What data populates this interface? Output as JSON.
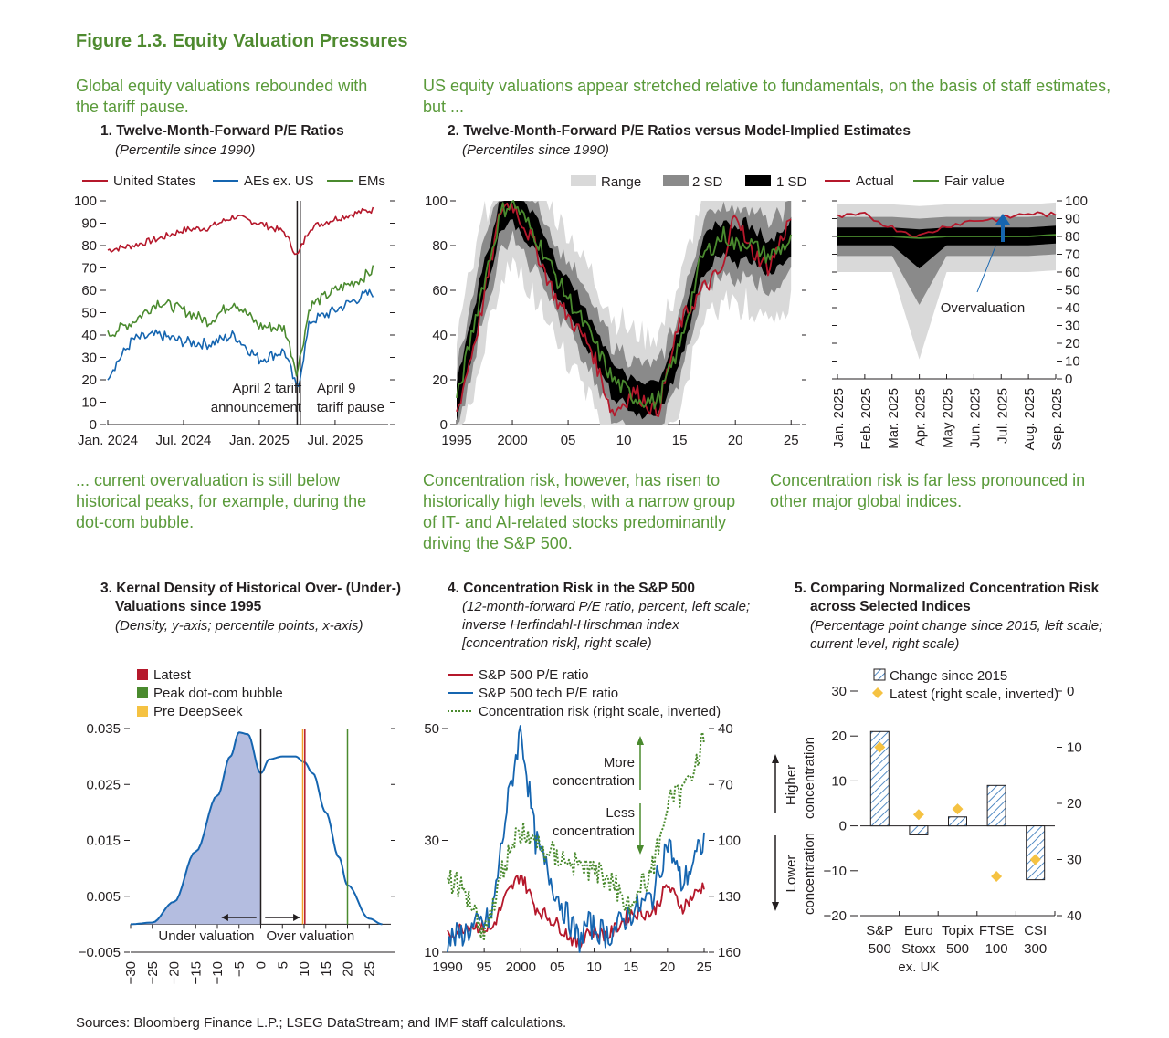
{
  "figure": {
    "title": "Figure 1.3. Equity Valuation Pressures",
    "sources": "Sources: Bloomberg Finance L.P.; LSEG DataStream; and IMF staff calculations."
  },
  "captions": {
    "c1": "Global equity valuations rebounded with the tariff pause.",
    "c2": "US equity valuations appear stretched relative to fundamentals, on the basis of staff estimates, but ...",
    "c3": "... current overvaluation is still below historical peaks, for example, during the dot-com bubble.",
    "c4": "Concentration risk, however, has risen to historically high levels, with a narrow group of IT- and AI-related stocks predominantly driving the S&P 500.",
    "c5": "Concentration risk is far less pronounced in other major global indices."
  },
  "panels": {
    "p1": {
      "title": "1. Twelve-Month-Forward P/E Ratios",
      "subtitle": "(Percentile since 1990)"
    },
    "p2": {
      "title": "2. Twelve-Month-Forward P/E Ratios versus Model-Implied Estimates",
      "subtitle": "(Percentiles since 1990)"
    },
    "p3": {
      "title1": "3. Kernal Density of Historical Over- (Under-)",
      "title2": "Valuations since 1995",
      "subtitle": "(Density, y-axis; percentile points, x-axis)"
    },
    "p4": {
      "title": "4. Concentration Risk in the S&P 500",
      "sub1": "(12-month-forward P/E ratio, percent, left scale;",
      "sub2": "inverse Herfindahl-Hirschman index",
      "sub3": "[concentration risk], right scale)"
    },
    "p5": {
      "title1": "5. Comparing Normalized Concentration Risk",
      "title2": "across Selected Indices",
      "sub1": "(Percentage point change since 2015, left scale;",
      "sub2": "current level, right scale)"
    }
  },
  "colors": {
    "red": "#b5182b",
    "blue": "#1565b0",
    "green": "#4a8a2e",
    "orange": "#f0a12a",
    "yellow": "#f5c242",
    "density_fill": "#b4bde0",
    "hatch_blue": "#2a6fb5"
  },
  "chart_data": [
    {
      "type": "line",
      "id": "p1",
      "x_ticks": [
        "Jan. 2024",
        "Jul. 2024",
        "Jan. 2025",
        "Jul. 2025"
      ],
      "ylim": [
        0,
        100
      ],
      "y_ticks": [
        0,
        10,
        20,
        30,
        40,
        50,
        60,
        70,
        80,
        90,
        100
      ],
      "legend": [
        "United States",
        "AEs ex. US",
        "EMs"
      ],
      "annotations": [
        "April 2 tariff",
        "announcement",
        "April 9",
        "tariff pause"
      ],
      "series": [
        {
          "name": "United States",
          "color": "#b5182b",
          "x": [
            "2024-01",
            "2024-03",
            "2024-05",
            "2024-07",
            "2024-09",
            "2024-11",
            "2025-01",
            "2025-03",
            "2025-04",
            "2025-05",
            "2025-07",
            "2025-09",
            "2025-10"
          ],
          "values": [
            78,
            80,
            83,
            87,
            88,
            93,
            90,
            86,
            75,
            88,
            92,
            95,
            96
          ]
        },
        {
          "name": "AEs ex. US",
          "color": "#1565b0",
          "x": [
            "2024-01",
            "2024-03",
            "2024-05",
            "2024-07",
            "2024-09",
            "2024-11",
            "2025-01",
            "2025-03",
            "2025-04",
            "2025-05",
            "2025-07",
            "2025-09",
            "2025-10"
          ],
          "values": [
            22,
            38,
            40,
            37,
            36,
            40,
            29,
            33,
            15,
            46,
            51,
            57,
            59
          ]
        },
        {
          "name": "EMs",
          "color": "#4a8a2e",
          "x": [
            "2024-01",
            "2024-03",
            "2024-05",
            "2024-07",
            "2024-09",
            "2024-11",
            "2025-01",
            "2025-03",
            "2025-04",
            "2025-05",
            "2025-07",
            "2025-09",
            "2025-10"
          ],
          "values": [
            40,
            46,
            55,
            51,
            46,
            55,
            44,
            43,
            23,
            53,
            60,
            65,
            69
          ]
        }
      ]
    },
    {
      "type": "line",
      "id": "p2a",
      "x_ticks": [
        "1995",
        "2000",
        "05",
        "10",
        "15",
        "20",
        "25"
      ],
      "ylim": [
        0,
        100
      ],
      "y_ticks": [
        0,
        20,
        40,
        60,
        80,
        100
      ],
      "legend": [
        "Range",
        "2 SD",
        "1 SD"
      ],
      "series": [
        {
          "name": "Actual",
          "color": "#b5182b",
          "x": [
            1995,
            1997,
            1999,
            2000,
            2002,
            2004,
            2007,
            2009,
            2011,
            2013,
            2015,
            2017,
            2019,
            2020,
            2021,
            2023,
            2025
          ],
          "values": [
            5,
            45,
            97,
            99,
            80,
            55,
            35,
            5,
            15,
            5,
            45,
            60,
            70,
            98,
            80,
            70,
            93
          ]
        },
        {
          "name": "Fair value",
          "color": "#4a8a2e",
          "x": [
            1995,
            1997,
            1999,
            2000,
            2002,
            2004,
            2007,
            2009,
            2011,
            2013,
            2015,
            2017,
            2019,
            2020,
            2021,
            2023,
            2025
          ],
          "values": [
            10,
            55,
            95,
            100,
            85,
            65,
            40,
            20,
            12,
            10,
            35,
            75,
            85,
            80,
            82,
            75,
            82
          ]
        }
      ]
    },
    {
      "type": "line",
      "id": "p2b",
      "x_ticks": [
        "Jan. 2025",
        "Feb. 2025",
        "Mar. 2025",
        "Apr. 2025",
        "May 2025",
        "Jun. 2025",
        "Jul. 2025",
        "Aug. 2025",
        "Sep. 2025"
      ],
      "ylim": [
        0,
        100
      ],
      "y_ticks": [
        0,
        10,
        20,
        30,
        40,
        50,
        60,
        70,
        80,
        90,
        100
      ],
      "legend": [
        "Actual",
        "Fair value"
      ],
      "annotations": [
        "Overvaluation"
      ],
      "series": [
        {
          "name": "Actual",
          "color": "#b5182b",
          "x": [
            "Jan",
            "Feb",
            "Mar",
            "Apr",
            "May",
            "Jun",
            "Jul",
            "Aug",
            "Sep"
          ],
          "values": [
            91,
            92,
            85,
            80,
            86,
            89,
            90,
            93,
            92
          ]
        },
        {
          "name": "Fair value",
          "color": "#4a8a2e",
          "x": [
            "Jan",
            "Feb",
            "Mar",
            "Apr",
            "May",
            "Jun",
            "Jul",
            "Aug",
            "Sep"
          ],
          "values": [
            80,
            80,
            80,
            79,
            80,
            80,
            80,
            80,
            81
          ]
        }
      ]
    },
    {
      "type": "area",
      "id": "p3",
      "xlim": [
        -30,
        30
      ],
      "x_ticks": [
        -30,
        -25,
        -20,
        -15,
        -10,
        -5,
        0,
        5,
        10,
        15,
        20,
        25
      ],
      "ylim": [
        -0.005,
        0.035
      ],
      "y_ticks": [
        "-0.005",
        "0.005",
        "0.015",
        "0.025",
        "0.035"
      ],
      "legend": [
        "Latest",
        "Peak dot-com bubble",
        "Pre DeepSeek"
      ],
      "annotations": [
        "Under valuation",
        "Over valuation"
      ],
      "x": [
        -30,
        -25,
        -20,
        -15,
        -10,
        -7,
        -5,
        -3,
        0,
        2,
        5,
        8,
        10,
        12,
        15,
        18,
        20,
        25,
        28
      ],
      "values": [
        0,
        0.0003,
        0.004,
        0.013,
        0.023,
        0.03,
        0.0343,
        0.034,
        0.027,
        0.0295,
        0.03,
        0.03,
        0.029,
        0.027,
        0.02,
        0.012,
        0.007,
        0.001,
        0
      ],
      "markers": [
        {
          "name": "Latest",
          "x": 10,
          "color": "#b5182b"
        },
        {
          "name": "Peak dot-com bubble",
          "x": 20,
          "color": "#4a8a2e"
        },
        {
          "name": "Pre DeepSeek",
          "x": 10,
          "color": "#f0a12a"
        }
      ]
    },
    {
      "type": "line",
      "id": "p4",
      "x_ticks": [
        "1990",
        "95",
        "2000",
        "05",
        "10",
        "15",
        "20",
        "25"
      ],
      "y_left_ticks": [
        10,
        30,
        50
      ],
      "y_right_ticks": [
        40,
        70,
        100,
        130,
        160
      ],
      "legend": [
        "S&P 500 P/E ratio",
        "S&P 500 tech P/E ratio",
        "Concentration risk (right scale, inverted)"
      ],
      "annotations": [
        "More",
        "concentration",
        "Less",
        "concentration"
      ],
      "series": [
        {
          "name": "S&P 500 P/E ratio",
          "color": "#b5182b",
          "x": [
            1990,
            1993,
            1996,
            1998,
            2000,
            2002,
            2005,
            2008,
            2009,
            2012,
            2015,
            2018,
            2020,
            2022,
            2025
          ],
          "values": [
            13,
            15,
            14,
            20,
            24,
            18,
            15,
            11,
            14,
            13,
            17,
            17,
            22,
            18,
            22
          ]
        },
        {
          "name": "S&P 500 tech P/E ratio",
          "color": "#1565b0",
          "x": [
            1990,
            1993,
            1996,
            1998,
            2000,
            2002,
            2005,
            2008,
            2009,
            2012,
            2015,
            2018,
            2020,
            2022,
            2025
          ],
          "values": [
            12,
            14,
            16,
            35,
            50,
            30,
            20,
            12,
            15,
            13,
            17,
            20,
            30,
            22,
            30
          ]
        },
        {
          "name": "Concentration risk (right scale, inverted)",
          "color": "#4a8a2e",
          "x": [
            1990,
            1993,
            1995,
            1998,
            2000,
            2003,
            2006,
            2009,
            2012,
            2015,
            2018,
            2020,
            2022,
            2024,
            2025
          ],
          "values": [
            120,
            130,
            150,
            110,
            95,
            105,
            110,
            115,
            120,
            135,
            115,
            80,
            75,
            55,
            45
          ]
        }
      ]
    },
    {
      "type": "bar",
      "id": "p5",
      "categories": [
        "S&P 500",
        "Euro Stoxx ex. UK",
        "Topix 500",
        "FTSE 100",
        "CSI 300"
      ],
      "category_lines": [
        [
          "S&P",
          "500"
        ],
        [
          "Euro",
          "Stoxx",
          "ex. UK"
        ],
        [
          "Topix",
          "500"
        ],
        [
          "FTSE",
          "100"
        ],
        [
          "CSI",
          "300"
        ]
      ],
      "series": [
        {
          "name": "Change since 2015",
          "values": [
            21,
            -2,
            2,
            9,
            -12
          ]
        },
        {
          "name": "Latest (right scale, inverted)",
          "values": [
            -10,
            -22,
            -21,
            -33,
            -30
          ]
        }
      ],
      "ylim": [
        -20,
        30
      ],
      "y_left_ticks": [
        -20,
        -10,
        0,
        10,
        20,
        30
      ],
      "y_right_ticks": [
        0,
        -10,
        -20,
        -30,
        -40
      ],
      "y_right_labels": [
        "0",
        "10",
        "20",
        "30",
        "40"
      ],
      "legend": [
        "Change since 2015",
        "Latest (right scale, inverted)"
      ],
      "annotations": [
        "Higher",
        "concentration",
        "Lower",
        "concentration"
      ]
    }
  ]
}
